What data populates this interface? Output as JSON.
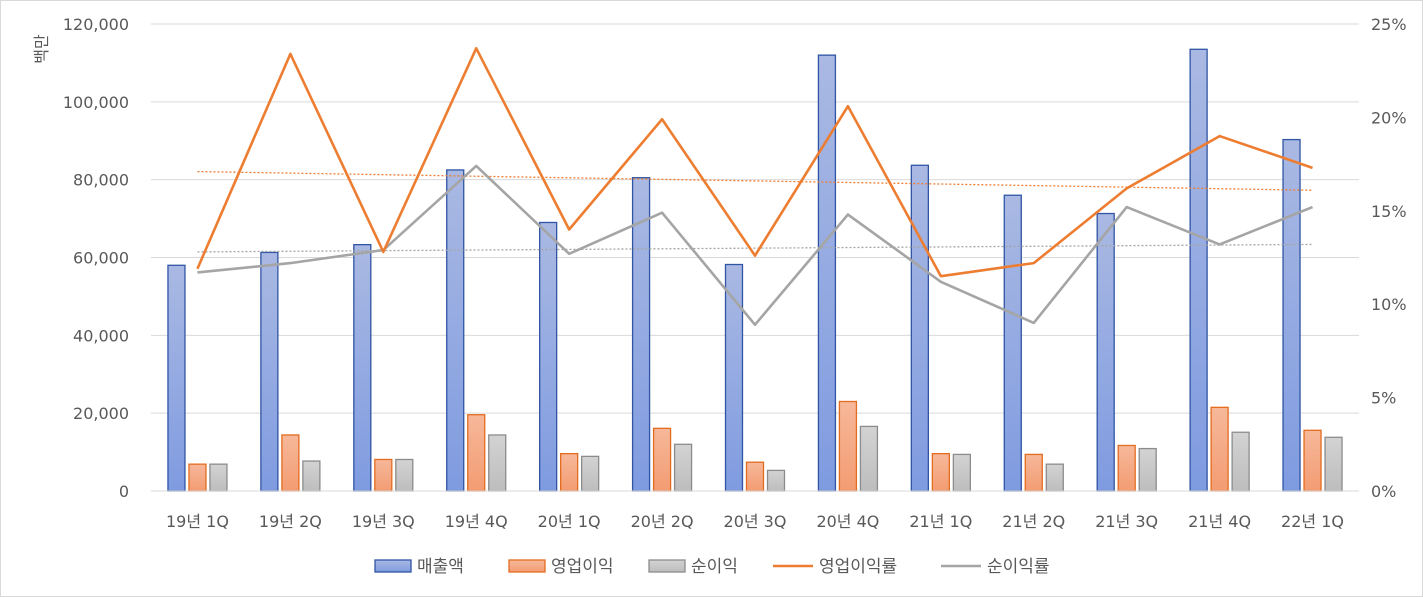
{
  "chart_data": {
    "type": "bar",
    "categories": [
      "19년 1Q",
      "19년 2Q",
      "19년 3Q",
      "19년 4Q",
      "20년 1Q",
      "20년 2Q",
      "20년 3Q",
      "20년 4Q",
      "21년 1Q",
      "21년 2Q",
      "21년 3Q",
      "21년 4Q",
      "22년 1Q"
    ],
    "ylabel": "백만",
    "ylim": [
      0,
      120000
    ],
    "y_ticks": [
      "0",
      "20,000",
      "40,000",
      "60,000",
      "80,000",
      "100,000",
      "120,000"
    ],
    "y2lim": [
      0,
      25
    ],
    "y2_ticks": [
      "0%",
      "5%",
      "10%",
      "15%",
      "20%",
      "25%"
    ],
    "grid": true,
    "legend_position": "bottom",
    "bar_series": [
      {
        "name": "매출액",
        "color": "#4472c4",
        "values": [
          58000,
          61300,
          63300,
          82500,
          69000,
          80500,
          58200,
          112000,
          83700,
          76000,
          71300,
          113500,
          90300
        ]
      },
      {
        "name": "영업이익",
        "color": "#ed7d31",
        "values": [
          6900,
          14400,
          8100,
          19600,
          9600,
          16100,
          7400,
          23000,
          9600,
          9400,
          11700,
          21500,
          15600
        ]
      },
      {
        "name": "순이익",
        "color": "#a5a5a5",
        "values": [
          6900,
          7700,
          8100,
          14400,
          8900,
          12000,
          5300,
          16600,
          9400,
          6900,
          10900,
          15100,
          13800
        ]
      }
    ],
    "line_series": [
      {
        "name": "영업이익률",
        "color": "#ed7d31",
        "axis": "secondary",
        "values": [
          11.9,
          23.4,
          12.8,
          23.7,
          14.0,
          19.9,
          12.6,
          20.6,
          11.5,
          12.2,
          16.2,
          19.0,
          17.3
        ]
      },
      {
        "name": "순이익률",
        "color": "#a5a5a5",
        "axis": "secondary",
        "values": [
          11.7,
          12.2,
          12.9,
          17.4,
          12.7,
          14.9,
          8.9,
          14.8,
          11.2,
          9.0,
          15.2,
          13.2,
          15.2
        ]
      }
    ],
    "trendlines": [
      {
        "of": "영업이익률",
        "style": "dotted",
        "color": "#ed7d31",
        "start": 17.1,
        "end": 16.1
      },
      {
        "of": "순이익률",
        "style": "dotted",
        "color": "#a5a5a5",
        "start": 12.8,
        "end": 13.2
      }
    ],
    "legend": [
      "매출액",
      "영업이익",
      "순이익",
      "영업이익률",
      "순이익률"
    ]
  }
}
